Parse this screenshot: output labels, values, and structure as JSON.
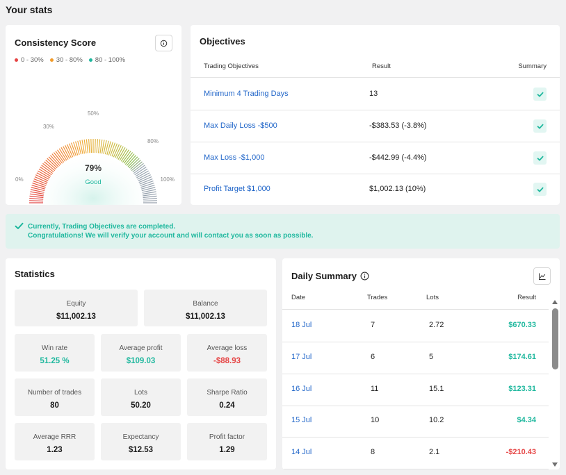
{
  "page_title": "Your stats",
  "consistency": {
    "title": "Consistency Score",
    "info_icon": "info-icon",
    "legend": [
      {
        "label": "0 - 30%",
        "color": "#e64545"
      },
      {
        "label": "30 - 80%",
        "color": "#f29b2a"
      },
      {
        "label": "80 - 100%",
        "color": "#1fb89e"
      }
    ],
    "gauge": {
      "value_label": "79%",
      "status": "Good",
      "ticks": [
        "0%",
        "30%",
        "50%",
        "80%",
        "100%"
      ],
      "value_fraction": 0.79,
      "status_color": "#1fb89e"
    }
  },
  "objectives": {
    "title": "Objectives",
    "headers": [
      "Trading Objectives",
      "Result",
      "Summary"
    ],
    "rows": [
      {
        "name": "Minimum 4 Trading Days",
        "result": "13"
      },
      {
        "name": "Max Daily Loss -$500",
        "result": "-$383.53 (-3.8%)"
      },
      {
        "name": "Max Loss -$1,000",
        "result": "-$442.99 (-4.4%)"
      },
      {
        "name": "Profit Target $1,000",
        "result": "$1,002.13 (10%)"
      }
    ]
  },
  "banner": {
    "line1": "Currently, Trading Objectives are completed.",
    "line2": "Congratulations! We will verify your account and will contact you as soon as possible."
  },
  "statistics": {
    "title": "Statistics",
    "top": [
      {
        "label": "Equity",
        "value": "$11,002.13"
      },
      {
        "label": "Balance",
        "value": "$11,002.13"
      }
    ],
    "grid": [
      {
        "label": "Win rate",
        "value": "51.25 %",
        "tone": "green"
      },
      {
        "label": "Average profit",
        "value": "$109.03",
        "tone": "green"
      },
      {
        "label": "Average loss",
        "value": "-$88.93",
        "tone": "red"
      },
      {
        "label": "Number of trades",
        "value": "80",
        "tone": ""
      },
      {
        "label": "Lots",
        "value": "50.20",
        "tone": ""
      },
      {
        "label": "Sharpe Ratio",
        "value": "0.24",
        "tone": ""
      },
      {
        "label": "Average RRR",
        "value": "1.23",
        "tone": ""
      },
      {
        "label": "Expectancy",
        "value": "$12.53",
        "tone": ""
      },
      {
        "label": "Profit factor",
        "value": "1.29",
        "tone": ""
      }
    ]
  },
  "daily": {
    "title": "Daily Summary",
    "headers": [
      "Date",
      "Trades",
      "Lots",
      "Result"
    ],
    "rows": [
      {
        "date": "18 Jul",
        "trades": "7",
        "lots": "2.72",
        "result": "$670.33",
        "tone": "pos"
      },
      {
        "date": "17 Jul",
        "trades": "6",
        "lots": "5",
        "result": "$174.61",
        "tone": "pos"
      },
      {
        "date": "16 Jul",
        "trades": "11",
        "lots": "15.1",
        "result": "$123.31",
        "tone": "pos"
      },
      {
        "date": "15 Jul",
        "trades": "10",
        "lots": "10.2",
        "result": "$4.34",
        "tone": "pos"
      },
      {
        "date": "14 Jul",
        "trades": "8",
        "lots": "2.1",
        "result": "-$210.43",
        "tone": "neg"
      }
    ]
  }
}
